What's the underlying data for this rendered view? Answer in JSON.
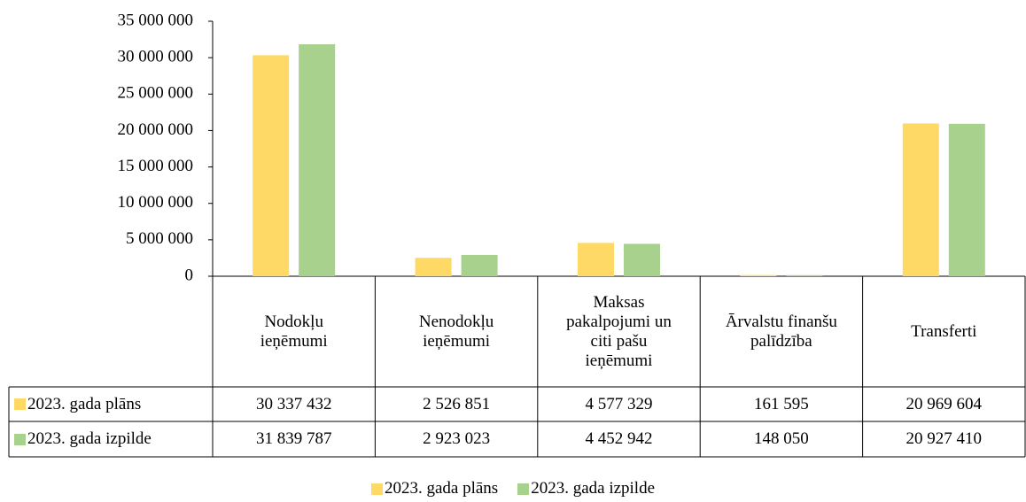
{
  "chart_data": {
    "type": "bar",
    "categories": [
      "Nodokļu ieņēmumi",
      "Nenodokļu ieņēmumi",
      "Maksas pakalpojumi un citi pašu ieņēmumi",
      "Ārvalstu finanšu palīdzība",
      "Transferti"
    ],
    "series": [
      {
        "name": "2023. gada plāns",
        "color": "#ffd966",
        "values": [
          30337432,
          2526851,
          4577329,
          161595,
          20969604
        ],
        "value_labels": [
          "30 337 432",
          "2 526 851",
          "4 577 329",
          "161 595",
          "20 969 604"
        ]
      },
      {
        "name": "2023. gada izpilde",
        "color": "#a9d18e",
        "values": [
          31839787,
          2923023,
          4452942,
          148050,
          20927410
        ],
        "value_labels": [
          "31 839 787",
          "2 923 023",
          "4 452 942",
          "148 050",
          "20 927 410"
        ]
      }
    ],
    "ylim": [
      0,
      35000000
    ],
    "yticks": [
      0,
      {
        "value": 5000000,
        "label": "5 000 000"
      },
      {
        "value": 10000000,
        "label": "10 000 000"
      },
      {
        "value": 15000000,
        "label": "15 000 000"
      },
      {
        "value": 20000000,
        "label": "20 000 000"
      },
      {
        "value": 25000000,
        "label": "25 000 000"
      },
      {
        "value": 30000000,
        "label": "30 000 000"
      },
      {
        "value": 35000000,
        "label": "35 000 000"
      }
    ],
    "grid": false,
    "legend": "bottom"
  }
}
